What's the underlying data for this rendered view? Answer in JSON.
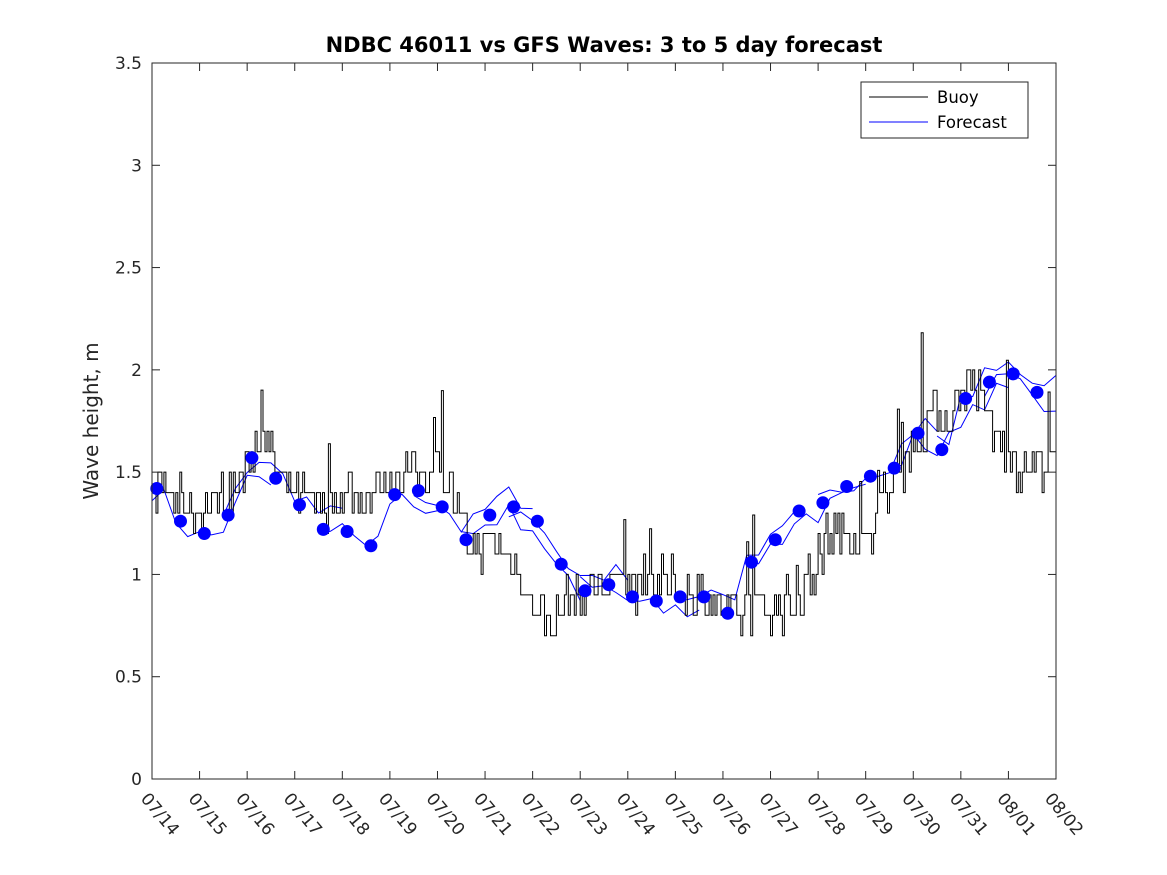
{
  "chart_data": {
    "type": "line",
    "title": "NDBC 46011 vs GFS Waves: 3 to 5 day forecast",
    "xlabel": "",
    "ylabel": "Wave height, m",
    "ylim": [
      0,
      3.5
    ],
    "yticks": [
      "0",
      "0.5",
      "1",
      "1.5",
      "2",
      "2.5",
      "3",
      "3.5"
    ],
    "xlim": [
      "07/14",
      "08/02"
    ],
    "xticks": [
      "07/14",
      "07/15",
      "07/16",
      "07/17",
      "07/18",
      "07/19",
      "07/20",
      "07/21",
      "07/22",
      "07/23",
      "07/24",
      "07/25",
      "07/26",
      "07/27",
      "07/28",
      "07/29",
      "07/30",
      "07/31",
      "08/01",
      "08/02"
    ],
    "grid": false,
    "legend": {
      "position": "top-right",
      "entries": [
        "Buoy",
        "Forecast"
      ]
    },
    "colors": {
      "buoy": "#000000",
      "forecast": "#0000ff"
    },
    "buoy_anchors": {
      "x_days": [
        0,
        0.2,
        0.35,
        0.6,
        1.0,
        1.3,
        1.6,
        1.9,
        2.1,
        2.3,
        2.5,
        2.8,
        3.0,
        3.3,
        3.7,
        4.0,
        4.3,
        4.6,
        4.9,
        5.2,
        5.5,
        5.7,
        6.0,
        6.2,
        6.4,
        6.6,
        6.8,
        7.1,
        7.4,
        7.7,
        8.0,
        8.2,
        8.4,
        8.6,
        9.0,
        9.5,
        10.0,
        10.5,
        11.0,
        11.5,
        11.8,
        12.0,
        12.3,
        12.6,
        13.0,
        13.5,
        13.9,
        14.2,
        14.5,
        15.0,
        15.3,
        15.6,
        15.9,
        16.2,
        16.5,
        16.8,
        17.0,
        17.2,
        17.5,
        17.7,
        18.0,
        18.3,
        18.7,
        19.0
      ],
      "y": [
        1.35,
        1.45,
        1.4,
        1.35,
        1.3,
        1.35,
        1.4,
        1.5,
        1.6,
        1.7,
        1.6,
        1.45,
        1.4,
        1.35,
        1.35,
        1.4,
        1.4,
        1.4,
        1.45,
        1.5,
        1.5,
        1.5,
        1.5,
        1.45,
        1.3,
        1.2,
        1.1,
        1.2,
        1.1,
        1.0,
        0.85,
        0.8,
        0.75,
        0.85,
        0.9,
        0.95,
        0.95,
        0.95,
        0.95,
        0.9,
        0.85,
        0.8,
        0.8,
        0.85,
        0.85,
        0.85,
        1.0,
        1.2,
        1.2,
        1.15,
        1.35,
        1.45,
        1.6,
        1.7,
        1.8,
        1.75,
        1.9,
        1.95,
        1.8,
        1.7,
        1.6,
        1.5,
        1.55,
        1.55
      ]
    },
    "forecast_points": {
      "x_days": [
        0.1,
        0.6,
        1.1,
        1.6,
        2.1,
        2.6,
        3.1,
        3.6,
        4.1,
        4.6,
        5.1,
        5.6,
        6.1,
        6.6,
        7.1,
        7.6,
        8.1,
        8.6,
        9.1,
        9.6,
        10.1,
        10.6,
        11.1,
        11.6,
        12.1,
        12.6,
        13.1,
        13.6,
        14.1,
        14.6,
        15.1,
        15.6,
        16.1,
        16.6,
        17.1,
        17.6,
        18.1,
        18.6
      ],
      "y": [
        1.42,
        1.26,
        1.2,
        1.29,
        1.57,
        1.47,
        1.34,
        1.22,
        1.21,
        1.14,
        1.39,
        1.41,
        1.33,
        1.17,
        1.29,
        1.33,
        1.26,
        1.05,
        0.92,
        0.95,
        0.89,
        0.87,
        0.89,
        0.89,
        0.81,
        1.06,
        1.17,
        1.31,
        1.35,
        1.43,
        1.48,
        1.52,
        1.69,
        1.61,
        1.86,
        1.94,
        1.98,
        1.89
      ]
    },
    "forecast_run_starts": [
      0,
      1.5,
      3.5,
      5.5,
      6.5,
      7.5,
      9.0,
      11.0,
      12.5,
      14.0,
      15.5,
      16.5,
      17.5
    ]
  }
}
